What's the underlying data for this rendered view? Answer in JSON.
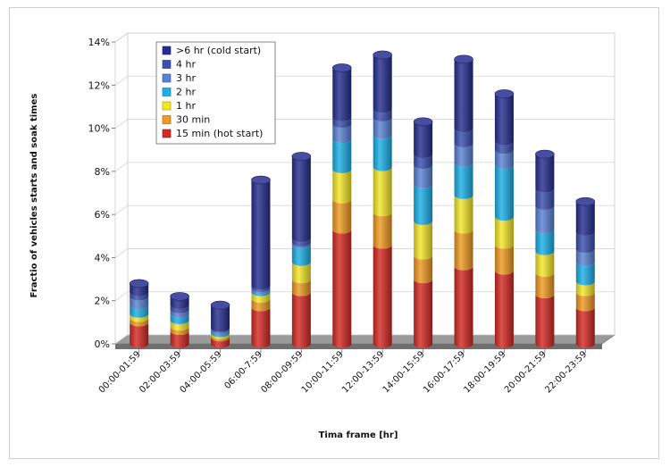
{
  "chart_data": {
    "type": "bar",
    "stacked": true,
    "style": "3d-cylinder",
    "xlabel": "Tima frame [hr]",
    "ylabel": "Fractio of vehicles starts and soak times",
    "ylim": [
      0,
      14
    ],
    "yticks": [
      "0%",
      "2%",
      "4%",
      "6%",
      "8%",
      "10%",
      "12%",
      "14%"
    ],
    "grid": true,
    "legend_position": "top-left",
    "categories": [
      "00:00-01:59",
      "02:00-03:59",
      "04:00-05:59",
      "06:00-7:59",
      "08:00-09:59",
      "10:00-11:59",
      "12:00-13:59",
      "14:00-15:59",
      "16:00-17:59",
      "18:00-19:59",
      "20:00-21:59",
      "22:00-23:59"
    ],
    "series": [
      {
        "name": "15 min (hot start)",
        "color": "#d42a25",
        "values": [
          1.0,
          0.6,
          0.3,
          1.7,
          2.4,
          5.3,
          4.6,
          3.0,
          3.6,
          3.4,
          2.3,
          1.7
        ]
      },
      {
        "name": "30 min",
        "color": "#ef9a22",
        "values": [
          0.2,
          0.2,
          0.1,
          0.4,
          0.6,
          1.4,
          1.5,
          1.1,
          1.7,
          1.2,
          1.0,
          0.7
        ]
      },
      {
        "name": "1 hr",
        "color": "#f5e62a",
        "values": [
          0.2,
          0.3,
          0.1,
          0.3,
          0.8,
          1.4,
          2.1,
          1.6,
          1.6,
          1.3,
          1.0,
          0.5
        ]
      },
      {
        "name": "2 hr",
        "color": "#1cb0e6",
        "values": [
          0.4,
          0.3,
          0.1,
          0.1,
          0.8,
          1.4,
          1.5,
          1.7,
          1.5,
          2.4,
          1.0,
          0.9
        ]
      },
      {
        "name": "3 hr",
        "color": "#5a82d4",
        "values": [
          0.4,
          0.2,
          0.1,
          0.1,
          0.1,
          0.7,
          0.8,
          0.9,
          0.9,
          0.7,
          1.1,
          0.6
        ]
      },
      {
        "name": "4 hr",
        "color": "#3b4fb0",
        "values": [
          0.2,
          0.2,
          0.05,
          0.1,
          0.2,
          0.3,
          0.4,
          0.5,
          0.7,
          0.4,
          0.8,
          0.8
        ]
      },
      {
        "name": ">6 hr (cold start)",
        "color": "#262e8f",
        "values": [
          0.4,
          0.4,
          1.05,
          4.9,
          3.8,
          2.3,
          2.5,
          1.5,
          3.2,
          2.2,
          1.6,
          1.4
        ]
      }
    ]
  }
}
